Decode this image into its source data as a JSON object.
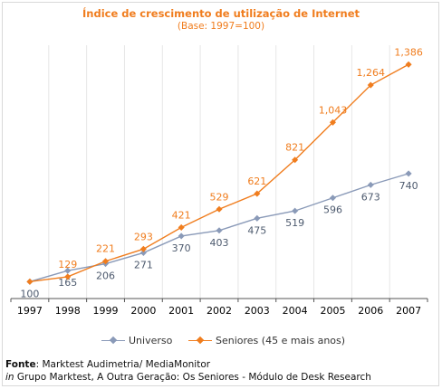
{
  "chart_data": {
    "type": "line",
    "title": "Índice de crescimento de utilização de Internet",
    "subtitle": "(Base: 1997=100)",
    "categories": [
      "1997",
      "1998",
      "1999",
      "2000",
      "2001",
      "2002",
      "2003",
      "2004",
      "2005",
      "2006",
      "2007"
    ],
    "series": [
      {
        "name": "Universo",
        "color": "#8a9ab8",
        "values": [
          100,
          165,
          206,
          271,
          370,
          403,
          475,
          519,
          596,
          673,
          740
        ],
        "labels": [
          "100",
          "165",
          "206",
          "271",
          "370",
          "403",
          "475",
          "519",
          "596",
          "673",
          "740"
        ]
      },
      {
        "name": "Seniores (45 e mais anos)",
        "color": "#f07d1e",
        "values": [
          100,
          129,
          221,
          293,
          421,
          529,
          621,
          821,
          1043,
          1264,
          1386
        ],
        "labels": [
          "",
          "129",
          "221",
          "293",
          "421",
          "529",
          "621",
          "821",
          "1,043",
          "1,264",
          "1,386"
        ]
      }
    ],
    "ylim": [
      0,
      1500
    ],
    "grid": "vertical",
    "legend": "bottom"
  },
  "source": {
    "label": "Fonte",
    "text": ": Marktest Audimetria/ MediaMonitor",
    "line2_italic": "in",
    "line2_text": " Grupo Marktest, A Outra Geração: Os Seniores - Módulo de Desk Research"
  }
}
